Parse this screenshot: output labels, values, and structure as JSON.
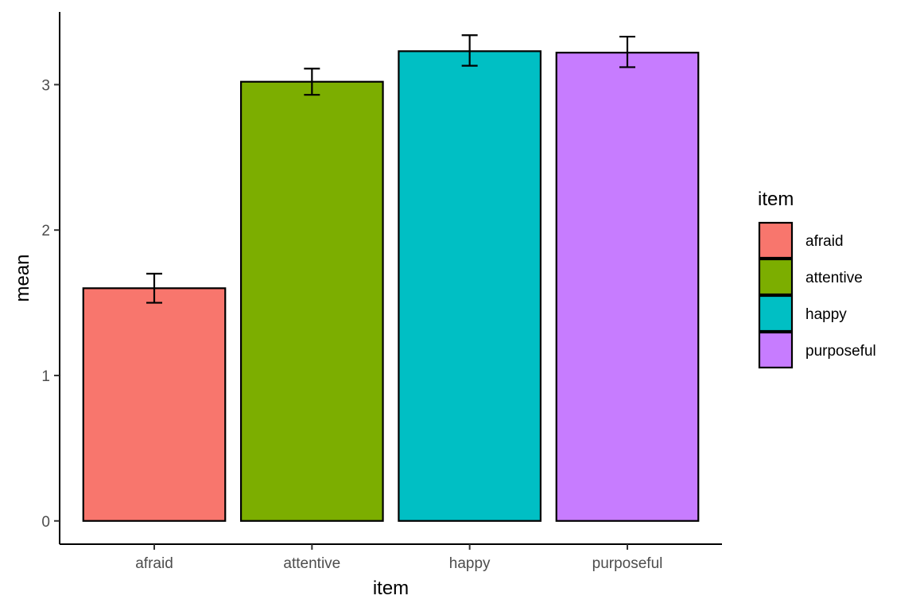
{
  "chart_data": {
    "type": "bar",
    "title": "",
    "xlabel": "item",
    "ylabel": "mean",
    "categories": [
      "afraid",
      "attentive",
      "happy",
      "purposeful"
    ],
    "values": [
      1.6,
      3.02,
      3.23,
      3.22
    ],
    "error_bars": [
      {
        "low": 1.5,
        "high": 1.7
      },
      {
        "low": 2.93,
        "high": 3.11
      },
      {
        "low": 3.13,
        "high": 3.34
      },
      {
        "low": 3.12,
        "high": 3.33
      }
    ],
    "colors": [
      "#F8766D",
      "#7CAE00",
      "#00BFC4",
      "#C77CFF"
    ],
    "ylim": [
      -0.16,
      3.5
    ],
    "yticks": [
      0,
      1,
      2,
      3
    ],
    "ytick_labels": [
      "0",
      "1",
      "2",
      "3"
    ],
    "grid": false,
    "legend": {
      "title": "item",
      "position": "right",
      "entries": [
        "afraid",
        "attentive",
        "happy",
        "purposeful"
      ]
    }
  }
}
